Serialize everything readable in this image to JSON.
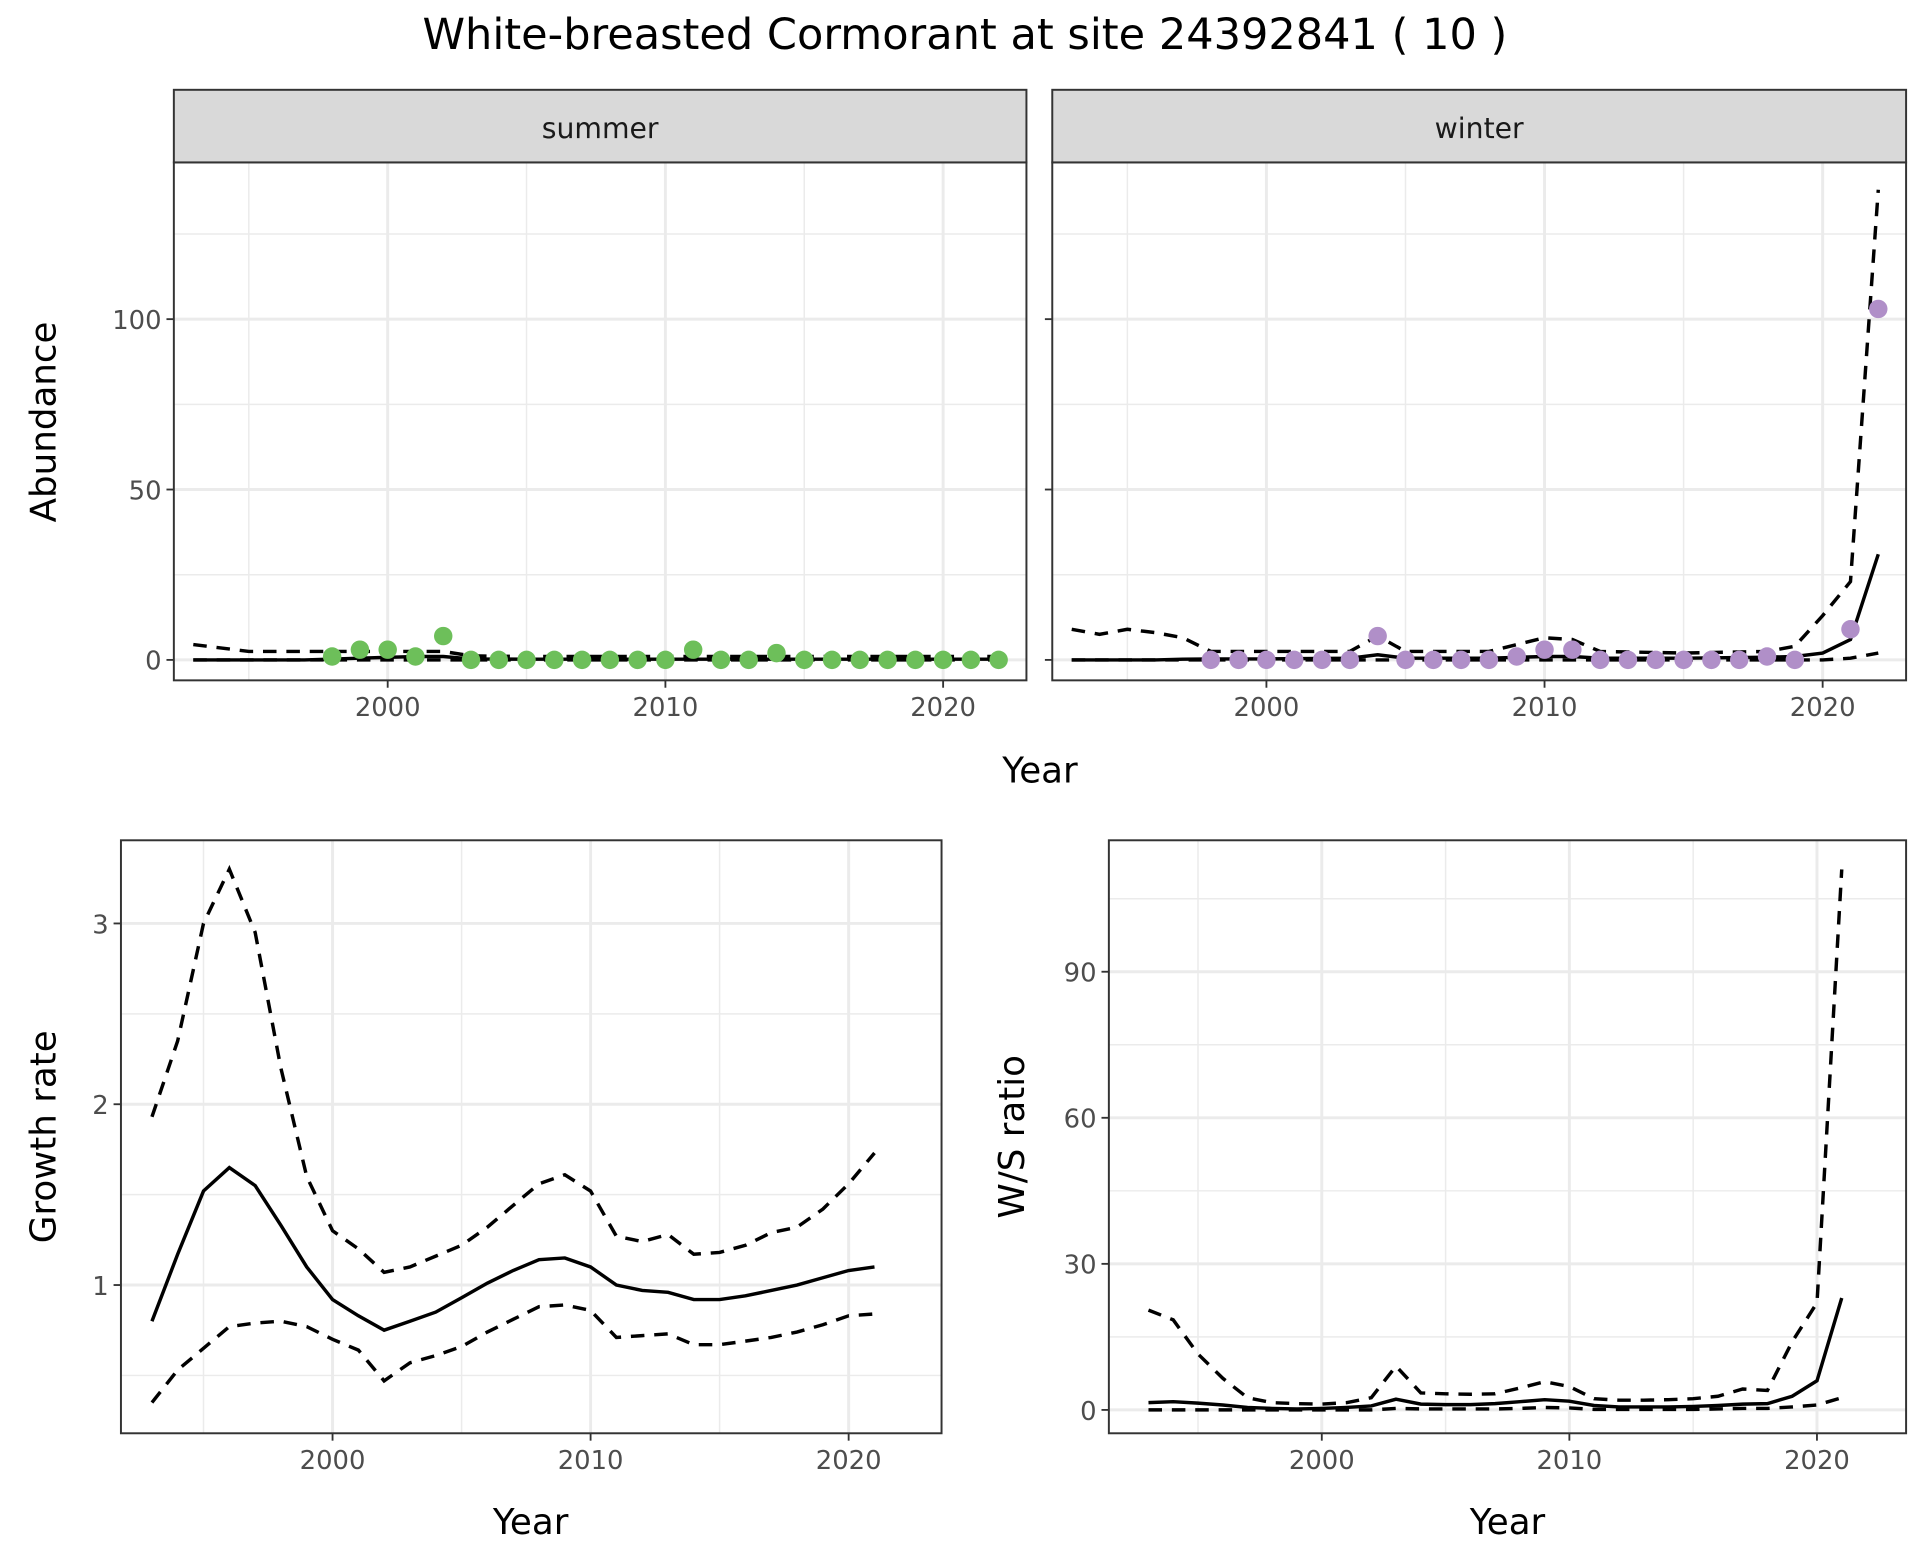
{
  "title": "White-breasted Cormorant at site 24392841 ( 10 )",
  "colors": {
    "summer": "#6dbf5a",
    "winter": "#b08fc8",
    "line": "#000000",
    "strip": "#d9d9d9",
    "grid": "#ebebeb"
  },
  "chart_data": [
    {
      "type": "line+scatter",
      "facet": "summer",
      "xlabel": "Year",
      "ylabel": "Abundance",
      "xlim": [
        1992.3,
        2023.0
      ],
      "ylim": [
        -6,
        146
      ],
      "xticks": [
        2000,
        2010,
        2020
      ],
      "yticks": [
        0,
        50,
        100
      ],
      "grid": true,
      "points": {
        "x": [
          1998,
          1999,
          2000,
          2001,
          2002,
          2003,
          2004,
          2005,
          2006,
          2007,
          2008,
          2009,
          2010,
          2011,
          2012,
          2013,
          2014,
          2015,
          2016,
          2017,
          2018,
          2019,
          2020,
          2021,
          2022
        ],
        "y": [
          1,
          3,
          3,
          1,
          7,
          0,
          0,
          0,
          0,
          0,
          0,
          0,
          0,
          3,
          0,
          0,
          2,
          0,
          0,
          0,
          0,
          0,
          0,
          0,
          0
        ]
      },
      "x": [
        1993,
        1995,
        1997,
        1999,
        2001,
        2002,
        2003,
        2005,
        2010,
        2015,
        2020,
        2022
      ],
      "estimate": [
        0,
        0,
        0,
        0.5,
        1,
        1,
        0.3,
        0.2,
        0.2,
        0.2,
        0.2,
        0.2
      ],
      "upper": [
        4.5,
        2.5,
        2.5,
        2.5,
        2.5,
        2.5,
        1.2,
        1,
        1,
        1,
        1,
        1
      ],
      "lower": [
        0,
        0,
        0,
        0,
        0,
        0,
        0,
        0,
        0,
        0,
        0,
        0
      ]
    },
    {
      "type": "line+scatter",
      "facet": "winter",
      "xlabel": "Year",
      "ylabel": "Abundance",
      "xlim": [
        1992.3,
        2023.0
      ],
      "ylim": [
        -6,
        146
      ],
      "xticks": [
        2000,
        2010,
        2020
      ],
      "yticks": [
        0,
        50,
        100
      ],
      "grid": true,
      "points": {
        "x": [
          1998,
          1999,
          2000,
          2001,
          2002,
          2003,
          2004,
          2005,
          2006,
          2007,
          2008,
          2009,
          2010,
          2011,
          2012,
          2013,
          2014,
          2015,
          2016,
          2017,
          2018,
          2019,
          2021,
          2022
        ],
        "y": [
          0,
          0,
          0,
          0,
          0,
          0,
          7,
          0,
          0,
          0,
          0,
          1,
          3,
          3,
          0,
          0,
          0,
          0,
          0,
          0,
          1,
          0,
          9,
          103
        ]
      },
      "x": [
        1993,
        1994,
        1995,
        1996,
        1997,
        1998,
        2000,
        2003,
        2004,
        2005,
        2008,
        2010,
        2011,
        2012,
        2015,
        2018,
        2019,
        2020,
        2021,
        2022
      ],
      "estimate": [
        0,
        0,
        0,
        0,
        0.2,
        0.3,
        0.3,
        0.5,
        1.5,
        0.5,
        0.5,
        1,
        1,
        0.5,
        0.5,
        0.8,
        1,
        2,
        6,
        31
      ],
      "upper": [
        9,
        7.5,
        9,
        8,
        6.5,
        2.5,
        2.5,
        2.5,
        7,
        2.5,
        2.5,
        6.5,
        6,
        2.5,
        2,
        2.5,
        4,
        13,
        23,
        138
      ],
      "lower": [
        0,
        0,
        0,
        0,
        0,
        0,
        0,
        0,
        0,
        0,
        0,
        0,
        0,
        0,
        0,
        0,
        0,
        0,
        0.5,
        2
      ]
    },
    {
      "type": "line",
      "xlabel": "Year",
      "ylabel": "Growth rate",
      "xlim": [
        1991.8,
        2023.6
      ],
      "ylim": [
        0.18,
        3.46
      ],
      "xticks": [
        2000,
        2010,
        2020
      ],
      "yticks": [
        1,
        2,
        3
      ],
      "grid": true,
      "x": [
        1993,
        1994,
        1995,
        1996,
        1997,
        1998,
        1999,
        2000,
        2001,
        2002,
        2003,
        2004,
        2005,
        2006,
        2007,
        2008,
        2009,
        2010,
        2011,
        2012,
        2013,
        2014,
        2015,
        2016,
        2017,
        2018,
        2019,
        2020,
        2021
      ],
      "estimate": [
        0.8,
        1.17,
        1.52,
        1.65,
        1.55,
        1.33,
        1.1,
        0.92,
        0.83,
        0.75,
        0.8,
        0.85,
        0.93,
        1.01,
        1.08,
        1.14,
        1.15,
        1.1,
        1.0,
        0.97,
        0.96,
        0.92,
        0.92,
        0.94,
        0.97,
        1.0,
        1.04,
        1.08,
        1.1
      ],
      "upper": [
        1.93,
        2.35,
        3.0,
        3.3,
        2.95,
        2.2,
        1.6,
        1.3,
        1.2,
        1.07,
        1.1,
        1.16,
        1.22,
        1.32,
        1.44,
        1.56,
        1.61,
        1.52,
        1.27,
        1.24,
        1.28,
        1.17,
        1.18,
        1.22,
        1.29,
        1.32,
        1.42,
        1.56,
        1.73
      ],
      "lower": [
        0.35,
        0.53,
        0.65,
        0.77,
        0.79,
        0.8,
        0.77,
        0.7,
        0.64,
        0.47,
        0.57,
        0.61,
        0.66,
        0.74,
        0.81,
        0.88,
        0.89,
        0.86,
        0.71,
        0.72,
        0.73,
        0.67,
        0.67,
        0.69,
        0.71,
        0.74,
        0.78,
        0.83,
        0.84
      ]
    },
    {
      "type": "line",
      "xlabel": "Year",
      "ylabel": "W/S ratio",
      "xlim": [
        1991.4,
        2023.6
      ],
      "ylim": [
        -4.8,
        117
      ],
      "xticks": [
        2000,
        2010,
        2020
      ],
      "yticks": [
        0,
        30,
        60,
        90
      ],
      "grid": true,
      "x": [
        1993,
        1994,
        1995,
        1996,
        1997,
        1998,
        1999,
        2000,
        2001,
        2002,
        2003,
        2004,
        2005,
        2006,
        2007,
        2008,
        2009,
        2010,
        2011,
        2012,
        2013,
        2014,
        2015,
        2016,
        2017,
        2018,
        2019,
        2020,
        2021
      ],
      "estimate": [
        1.5,
        1.7,
        1.4,
        1,
        0.5,
        0.3,
        0.2,
        0.3,
        0.5,
        0.8,
        2.2,
        1.2,
        1.1,
        1.1,
        1.3,
        1.7,
        2.1,
        1.8,
        0.9,
        0.6,
        0.6,
        0.6,
        0.7,
        0.9,
        1.2,
        1.3,
        2.8,
        6,
        23
      ],
      "upper": [
        20.5,
        18.5,
        11.5,
        6.5,
        2.5,
        1.5,
        1.3,
        1.2,
        1.5,
        2.5,
        9,
        3.5,
        3.3,
        3.2,
        3.3,
        4.5,
        5.8,
        4.8,
        2.3,
        2,
        2,
        2.1,
        2.3,
        2.8,
        4.3,
        4,
        14,
        22,
        111
      ],
      "lower": [
        0,
        0,
        0,
        0,
        0,
        0,
        0,
        0,
        0,
        0,
        0.3,
        0.2,
        0.2,
        0.2,
        0.2,
        0.3,
        0.5,
        0.4,
        0.1,
        0.1,
        0.1,
        0.1,
        0.1,
        0.2,
        0.3,
        0.3,
        0.6,
        1,
        2.5
      ]
    }
  ]
}
